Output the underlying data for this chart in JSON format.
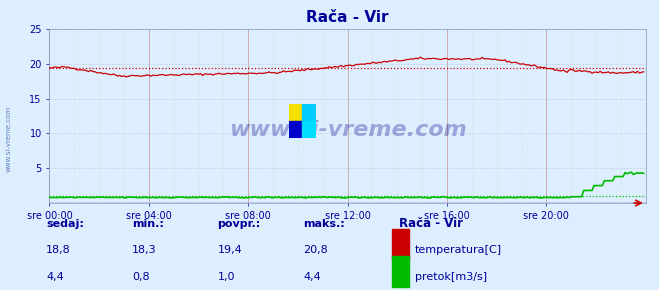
{
  "title": "Rača - Vir",
  "bg_color": "#ddeeff",
  "plot_bg_color": "#ddeeff",
  "xlim": [
    0,
    288
  ],
  "ylim": [
    0,
    25
  ],
  "yticks": [
    0,
    5,
    10,
    15,
    20,
    25
  ],
  "xtick_labels": [
    "sre 00:00",
    "sre 04:00",
    "sre 08:00",
    "sre 12:00",
    "sre 16:00",
    "sre 20:00"
  ],
  "xtick_positions": [
    0,
    48,
    96,
    144,
    192,
    240
  ],
  "temp_avg": 19.4,
  "temp_color": "#cc0000",
  "flow_color": "#00bb00",
  "title_color": "#000099",
  "font_color": "#000099",
  "legend_title": "Rača - Vir",
  "legend_items": [
    "temperatura[C]",
    "pretok[m3/s]"
  ],
  "legend_colors": [
    "#cc0000",
    "#00bb00"
  ],
  "table_headers": [
    "sedaj:",
    "min.:",
    "povpr.:",
    "maks.:"
  ],
  "table_temp": [
    "18,8",
    "18,3",
    "19,4",
    "20,8"
  ],
  "table_flow": [
    "4,4",
    "0,8",
    "1,0",
    "4,4"
  ]
}
